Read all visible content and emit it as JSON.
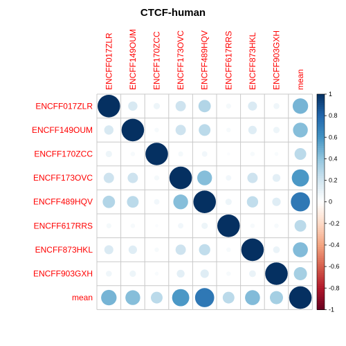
{
  "chart_data": {
    "type": "heatmap",
    "title": "CTCF-human",
    "labels": [
      "ENCFF017ZLR",
      "ENCFF149OUM",
      "ENCFF170ZCC",
      "ENCFF173OVC",
      "ENCFF489HQV",
      "ENCFF617RRS",
      "ENCFF873HKL",
      "ENCFF903GXH",
      "mean"
    ],
    "matrix": [
      [
        1.0,
        0.17,
        0.08,
        0.21,
        0.3,
        0.05,
        0.16,
        0.07,
        0.47
      ],
      [
        0.17,
        1.0,
        0.04,
        0.21,
        0.27,
        0.04,
        0.14,
        0.08,
        0.43
      ],
      [
        0.08,
        0.04,
        1.0,
        0.05,
        0.06,
        0.02,
        0.04,
        0.03,
        0.27
      ],
      [
        0.21,
        0.21,
        0.05,
        1.0,
        0.43,
        0.06,
        0.21,
        0.12,
        0.58
      ],
      [
        0.3,
        0.27,
        0.06,
        0.43,
        1.0,
        0.08,
        0.25,
        0.14,
        0.72
      ],
      [
        0.05,
        0.04,
        0.02,
        0.06,
        0.08,
        1.0,
        0.04,
        0.04,
        0.27
      ],
      [
        0.16,
        0.14,
        0.04,
        0.21,
        0.25,
        0.04,
        1.0,
        0.09,
        0.44
      ],
      [
        0.07,
        0.08,
        0.03,
        0.12,
        0.14,
        0.04,
        0.09,
        1.0,
        0.34
      ],
      [
        0.47,
        0.43,
        0.27,
        0.58,
        0.72,
        0.27,
        0.44,
        0.34,
        1.0
      ]
    ],
    "colorbar_ticks": [
      "1",
      "0.8",
      "0.6",
      "0.4",
      "0.2",
      "0",
      "-0.2",
      "-0.4",
      "-0.6",
      "-0.8",
      "-1"
    ],
    "colorbar_range": [
      -1,
      1
    ],
    "colors": {
      "labels": "#ff0000",
      "grid": "#c8c8c8",
      "neg_end": "#67001f",
      "mid": "#ffffff",
      "pos_end": "#053061"
    },
    "grid": true,
    "legend": "right"
  }
}
